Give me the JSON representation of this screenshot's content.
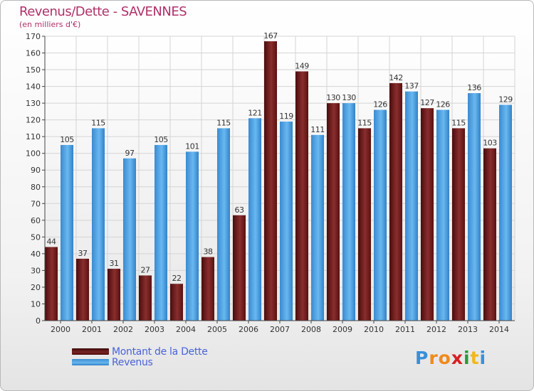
{
  "header": {
    "title": "Revenus/Dette - SAVENNES",
    "subtitle": "(en milliers d'€)"
  },
  "legend": {
    "debt_label": "Montant de la Dette",
    "revenue_label": "Revenus"
  },
  "logo": {
    "letters": [
      "P",
      "r",
      "o",
      "x",
      "i",
      "t",
      "i"
    ],
    "colors": [
      "#3a8fd8",
      "#f08a1a",
      "#f08a1a",
      "#d82020",
      "#2a9a3a",
      "#f0b81a",
      "#3a8fd8"
    ]
  },
  "colors": {
    "debt": "#7a2424",
    "revenue": "#5aaae6",
    "title": "#b0306a",
    "legend_text": "#4a62d8"
  },
  "chart_data": {
    "type": "bar",
    "title": "Revenus/Dette - SAVENNES",
    "ylabel": "(en milliers d'€)",
    "xlabel": "",
    "ylim": [
      0,
      170
    ],
    "ytick_step": 10,
    "grid": true,
    "categories": [
      "2000",
      "2001",
      "2002",
      "2003",
      "2004",
      "2005",
      "2006",
      "2007",
      "2008",
      "2009",
      "2010",
      "2011",
      "2012",
      "2013",
      "2014"
    ],
    "series": [
      {
        "name": "Montant de la Dette",
        "values": [
          44,
          37,
          31,
          27,
          22,
          38,
          63,
          167,
          149,
          130,
          115,
          142,
          127,
          115,
          103
        ]
      },
      {
        "name": "Revenus",
        "values": [
          105,
          115,
          97,
          105,
          101,
          115,
          121,
          119,
          111,
          130,
          126,
          137,
          126,
          136,
          129
        ]
      }
    ]
  }
}
